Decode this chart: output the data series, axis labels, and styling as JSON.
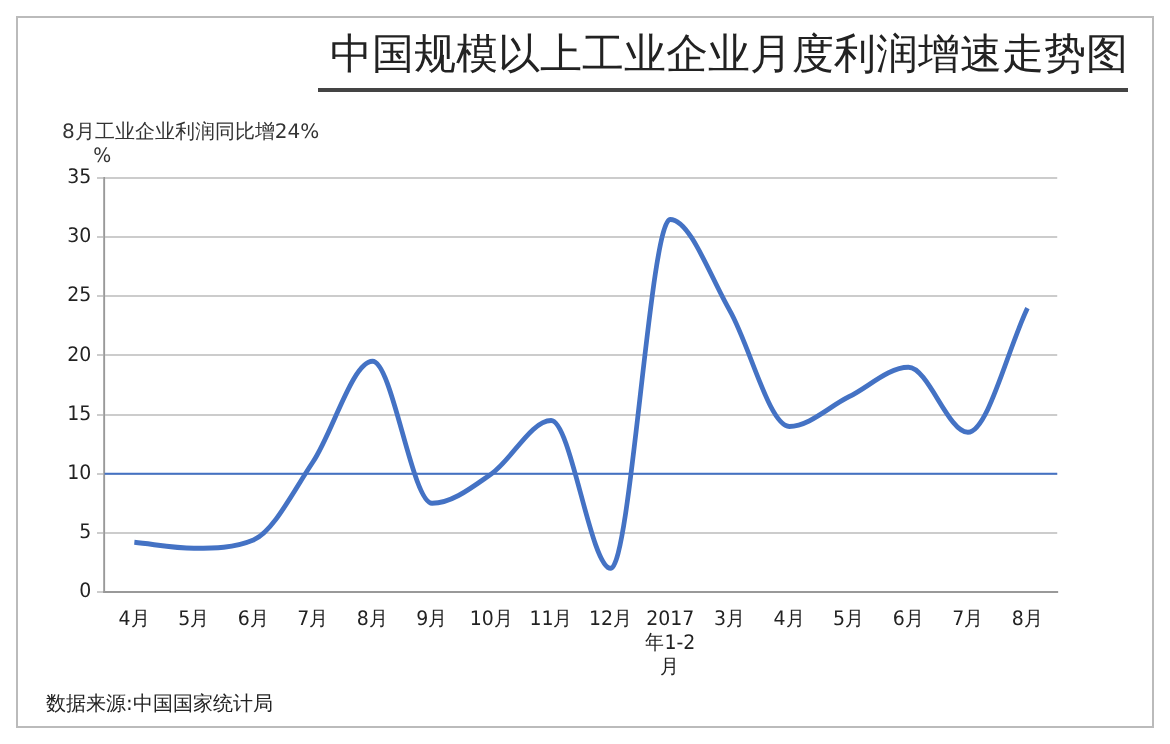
{
  "chart_data": {
    "type": "line",
    "title": "中国规模以上工业企业月度利润增速走势图",
    "subtitle": "8月工业企业利润同比增24%",
    "ylabel": "%",
    "categories": [
      "4月",
      "5月",
      "6月",
      "7月",
      "8月",
      "9月",
      "10月",
      "11月",
      "12月",
      "2017年1-2月",
      "3月",
      "4月",
      "5月",
      "6月",
      "7月",
      "8月"
    ],
    "series": [
      {
        "color": "#4472c4",
        "values": [
          4.2,
          3.7,
          4.4,
          11,
          19.5,
          7.5,
          10,
          14.5,
          2,
          31.5,
          23.8,
          14,
          16.5,
          19,
          13.5,
          24
        ]
      }
    ],
    "ylim": [
      0,
      35
    ],
    "yticks": [
      0,
      5,
      10,
      15,
      20,
      25,
      30,
      35
    ],
    "grid": "y",
    "legend": false,
    "marker": "none",
    "line_style": "solid",
    "ref_lines": [
      {
        "axis": "y",
        "value": 10,
        "color": "#4472c4"
      }
    ],
    "annotations": [
      "数据来源:中国国家统计局"
    ]
  }
}
